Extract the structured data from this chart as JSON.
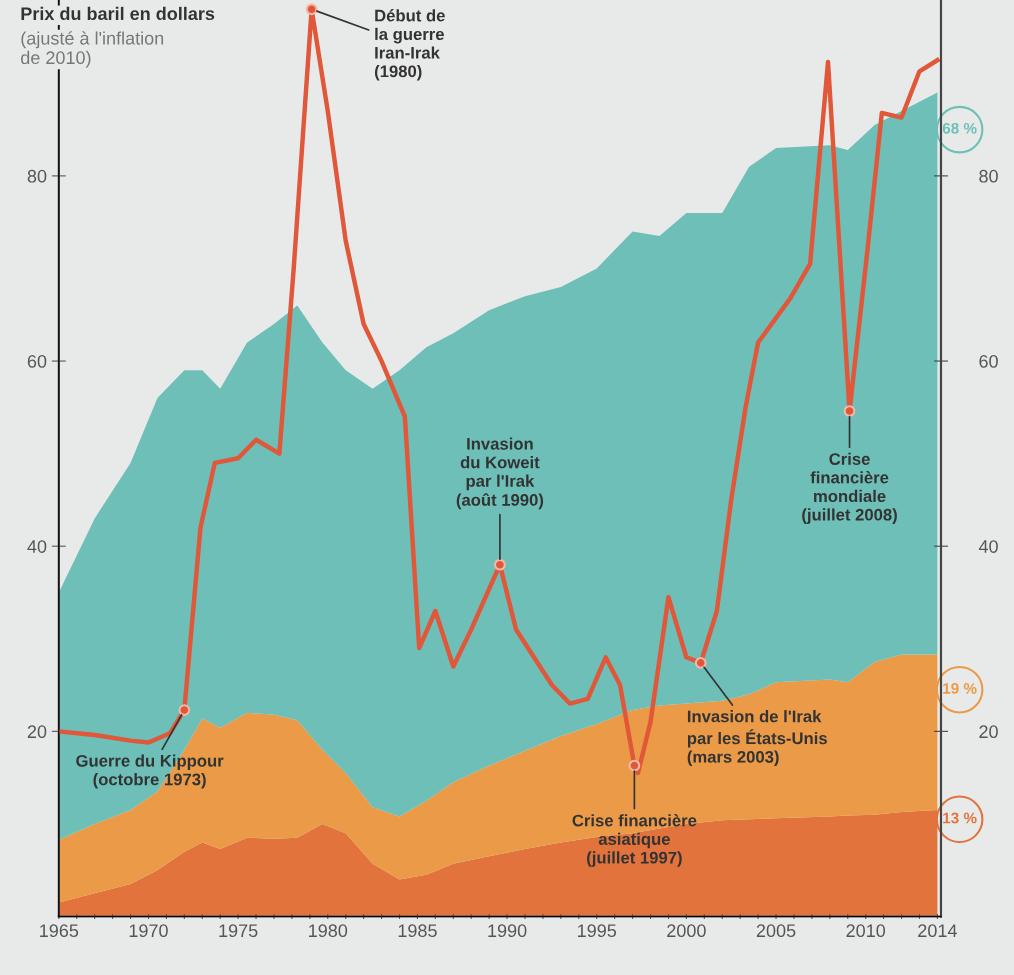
{
  "chart_data": {
    "type": "area",
    "title": "Prix du baril en dollars",
    "subtitle": "(ajusté à l'inflation\nde 2010)",
    "stacked": true,
    "x": [
      1965,
      1967,
      1969,
      1970.5,
      1972,
      1973,
      1974,
      1975.5,
      1977,
      1978.3,
      1979.7,
      1981,
      1982.5,
      1984,
      1985.5,
      1987,
      1989,
      1991,
      1993,
      1995,
      1997,
      1998.5,
      2000,
      2002,
      2003.5,
      2005,
      2008,
      2009,
      2010.5,
      2012,
      2014
    ],
    "series": [
      {
        "color": "#e2733d",
        "values": [
          1.5,
          2.5,
          3.5,
          5,
          7,
          8,
          7.3,
          8.5,
          8.4,
          8.5,
          10,
          9,
          5.7,
          4,
          4.5,
          5.7,
          6.5,
          7.3,
          8,
          8.6,
          9,
          9.5,
          10,
          10.4,
          10.5,
          10.6,
          10.8,
          10.9,
          11,
          11.3,
          11.5
        ]
      },
      {
        "color": "#eb9a47",
        "values": [
          6.8,
          7.5,
          8,
          8.5,
          11,
          13.4,
          13.1,
          13.5,
          13.4,
          12.7,
          8,
          6.5,
          6.1,
          6.8,
          8,
          8.8,
          9.8,
          10.6,
          11.5,
          12.2,
          13.3,
          13.3,
          13,
          12.9,
          13.5,
          14.7,
          14.8,
          14.4,
          16.5,
          17,
          16.8
        ]
      },
      {
        "color": "#6dbfb8",
        "values": [
          26.7,
          33,
          37.5,
          42.5,
          41,
          37.6,
          36.6,
          40,
          42.2,
          44.8,
          44,
          43.5,
          45.2,
          48.2,
          49,
          48.5,
          49.2,
          49.1,
          48.5,
          49.2,
          51.7,
          50.7,
          53,
          52.7,
          57,
          57.7,
          57.7,
          57.5,
          58,
          58.7,
          60.7
        ]
      },
      {
        "type": "line",
        "color": "#e0573a",
        "line_style": "solid",
        "x": [
          1965,
          1967,
          1969,
          1970,
          1971.2,
          1972,
          1972.9,
          1973.7,
          1975,
          1976,
          1977.3,
          1978.1,
          1979.1,
          1980,
          1981,
          1982,
          1983,
          1984.3,
          1985.1,
          1986,
          1987,
          1988,
          1989.6,
          1990.5,
          1991.5,
          1992.5,
          1993.5,
          1994.5,
          1995.5,
          1996.3,
          1997.1,
          1997.3,
          1998,
          1999,
          2000,
          2000.8,
          2001.7,
          2002.5,
          2003.3,
          2004,
          2005.8,
          2006.9,
          2007.9,
          2009.1,
          2010.1,
          2010.9,
          2012,
          2013,
          2014
        ],
        "values": [
          20,
          19.6,
          19,
          18.8,
          19.8,
          22.3,
          42,
          49,
          49.5,
          51.5,
          50,
          70,
          98,
          87,
          73,
          64,
          60,
          54,
          29,
          33,
          27,
          31,
          38,
          31,
          28,
          25,
          23,
          23.5,
          28,
          25,
          16.3,
          15.5,
          21,
          34.5,
          28,
          27.4,
          33,
          45,
          55,
          62,
          66.8,
          70.5,
          92.3,
          54.6,
          72,
          86.8,
          86.3,
          91.3,
          92.5
        ]
      }
    ],
    "xlim": [
      1965,
      2014.2
    ],
    "xticks": [
      1965,
      {
        "value": 1966,
        "label": null
      },
      {
        "value": 1967,
        "label": null
      },
      {
        "value": 1968,
        "label": null
      },
      {
        "value": 1969,
        "label": null
      },
      1970,
      {
        "value": 1971,
        "label": null
      },
      {
        "value": 1972,
        "label": null
      },
      {
        "value": 1973,
        "label": null
      },
      {
        "value": 1974,
        "label": null
      },
      1975,
      {
        "value": 1976,
        "label": null
      },
      {
        "value": 1977,
        "label": null
      },
      {
        "value": 1978,
        "label": null
      },
      {
        "value": 1979,
        "label": null
      },
      1980,
      {
        "value": 1981,
        "label": null
      },
      {
        "value": 1982,
        "label": null
      },
      {
        "value": 1983,
        "label": null
      },
      {
        "value": 1984,
        "label": null
      },
      1985,
      {
        "value": 1986,
        "label": null
      },
      {
        "value": 1987,
        "label": null
      },
      {
        "value": 1988,
        "label": null
      },
      {
        "value": 1989,
        "label": null
      },
      1990,
      {
        "value": 1991,
        "label": null
      },
      {
        "value": 1992,
        "label": null
      },
      {
        "value": 1993,
        "label": null
      },
      {
        "value": 1994,
        "label": null
      },
      1995,
      {
        "value": 1996,
        "label": null
      },
      {
        "value": 1997,
        "label": null
      },
      {
        "value": 1998,
        "label": null
      },
      {
        "value": 1999,
        "label": null
      },
      2000,
      {
        "value": 2001,
        "label": null
      },
      {
        "value": 2002,
        "label": null
      },
      {
        "value": 2003,
        "label": null
      },
      {
        "value": 2004,
        "label": null
      },
      2005,
      {
        "value": 2006,
        "label": null
      },
      {
        "value": 2007,
        "label": null
      },
      {
        "value": 2008,
        "label": null
      },
      {
        "value": 2009,
        "label": null
      },
      2010,
      {
        "value": 2011,
        "label": null
      },
      {
        "value": 2012,
        "label": null
      },
      {
        "value": 2013,
        "label": null
      },
      2014
    ],
    "ylim": [
      0,
      99
    ],
    "yticks": [
      20,
      40,
      60,
      80
    ],
    "y2lim": [
      0,
      99
    ],
    "y2ticks": [
      20,
      40,
      60,
      80
    ],
    "annotations": [
      {
        "text": "Début de\nla guerre\nIran-Irak\n(1980)",
        "x": 1979.1,
        "y": 98
      },
      {
        "text": "Guerre du Kippour\n(octobre 1973)",
        "x": 1972,
        "y": 22.3
      },
      {
        "text": "Invasion\ndu Koweit\npar l'Irak\n(août 1990)",
        "x": 1989.6,
        "y": 38
      },
      {
        "text": "Crise financière\nasiatique\n(juillet 1997)",
        "x": 1997.1,
        "y": 16.3
      },
      {
        "text": "Invasion de l'Irak\npar les États-Unis\n(mars 2003)",
        "x": 2000.8,
        "y": 27.4
      },
      {
        "text": "Crise\nfinancière\nmondiale\n(juillet 2008)",
        "x": 2009.1,
        "y": 54.6
      },
      {
        "text": "68 %",
        "x": 2014,
        "y": 85
      },
      {
        "text": "19 %",
        "x": 2014,
        "y": 24.5
      },
      {
        "text": "13 %",
        "x": 2014,
        "y": 10.5
      }
    ]
  }
}
